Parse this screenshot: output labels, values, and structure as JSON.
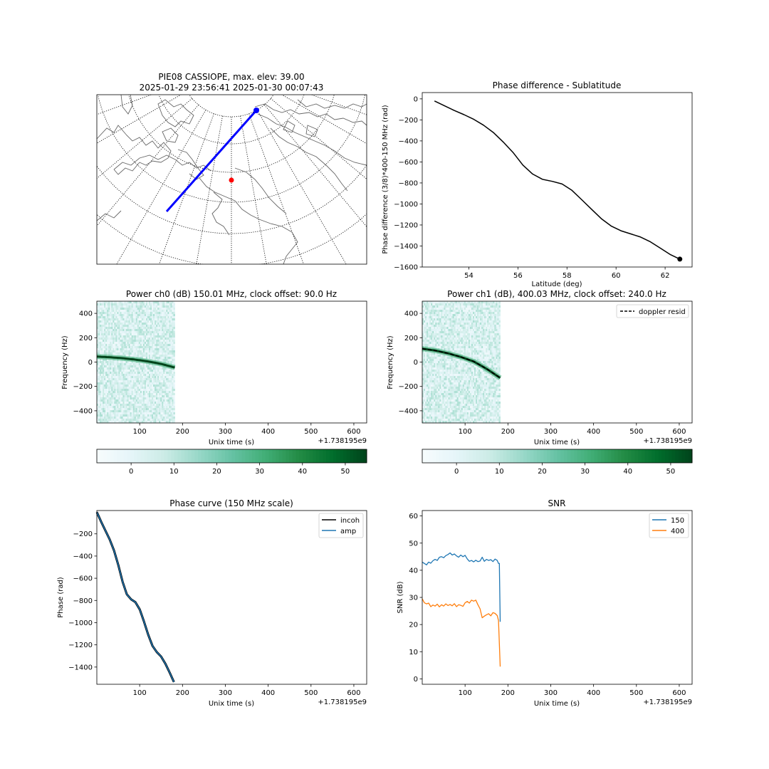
{
  "figure": {
    "background": "#ffffff"
  },
  "chart_data": [
    {
      "type": "map",
      "id": "map",
      "title_line1": "PIE08 CASSIOPE, max. elev: 39.00",
      "title_line2": "2025-01-29 23:56:41 2025-01-30 00:07:43",
      "projection": "north-polar-stereographic",
      "track_color": "#0000ff",
      "station_color": "#ff0000"
    },
    {
      "type": "line",
      "id": "phase_lat",
      "title": "Phase difference - Sublatitude",
      "xlabel": "Latitude (deg)",
      "ylabel": "Phase difference (3/8)*400-150 MHz (rad)",
      "xlim": [
        52.1,
        63.1
      ],
      "ylim": [
        -1600,
        60
      ],
      "xticks": [
        54,
        56,
        58,
        60,
        62
      ],
      "yticks": [
        0,
        -200,
        -400,
        -600,
        -800,
        -1000,
        -1200,
        -1400,
        -1600
      ],
      "series": [
        {
          "color": "#000000",
          "x": [
            52.6,
            53.0,
            53.4,
            53.8,
            54.2,
            54.6,
            55.0,
            55.4,
            55.8,
            56.2,
            56.6,
            57.0,
            57.4,
            57.8,
            58.2,
            58.6,
            59.0,
            59.4,
            59.8,
            60.2,
            60.6,
            61.0,
            61.4,
            61.8,
            62.2,
            62.6
          ],
          "values": [
            -20,
            -65,
            -110,
            -150,
            -195,
            -250,
            -320,
            -410,
            -510,
            -630,
            -715,
            -765,
            -785,
            -810,
            -870,
            -960,
            -1050,
            -1140,
            -1210,
            -1255,
            -1285,
            -1315,
            -1360,
            -1420,
            -1480,
            -1525
          ]
        }
      ],
      "end_marker": {
        "x": 62.6,
        "y": -1525
      }
    },
    {
      "type": "heatmap",
      "id": "power0",
      "title": "Power ch0 (dB) 150.01 MHz, clock offset: 90.0 Hz",
      "xlabel": "Unix time (s)",
      "ylabel": "Frequency (Hz)",
      "offset_text": "+1.738195e9",
      "xlim": [
        0,
        630
      ],
      "ylim": [
        -500,
        500
      ],
      "xticks": [
        100,
        200,
        300,
        400,
        500,
        600
      ],
      "yticks": [
        400,
        200,
        0,
        -200,
        -400
      ],
      "data_extent_x": [
        0,
        182
      ],
      "trace": {
        "x": [
          0,
          30,
          60,
          90,
          120,
          150,
          182
        ],
        "values": [
          45,
          40,
          32,
          20,
          5,
          -15,
          -45
        ]
      },
      "colorbar": {
        "ticks": [
          0,
          10,
          20,
          30,
          40,
          50
        ],
        "range": [
          -8,
          55
        ],
        "cmap": [
          "#f7fcfd",
          "#e5f5f9",
          "#ccece6",
          "#99d8c9",
          "#66c2a4",
          "#41ae76",
          "#238b45",
          "#006d2c",
          "#00441b"
        ]
      }
    },
    {
      "type": "heatmap",
      "id": "power1",
      "title": "Power ch1 (dB), 400.03 MHz, clock offset: 240.0 Hz",
      "xlabel": "Unix time (s)",
      "ylabel": "Frequency (Hz)",
      "offset_text": "+1.738195e9",
      "xlim": [
        0,
        630
      ],
      "ylim": [
        -500,
        500
      ],
      "xticks": [
        100,
        200,
        300,
        400,
        500,
        600
      ],
      "yticks": [
        400,
        200,
        0,
        -200,
        -400
      ],
      "data_extent_x": [
        0,
        182
      ],
      "trace": {
        "x": [
          0,
          30,
          60,
          90,
          120,
          150,
          182
        ],
        "values": [
          110,
          95,
          72,
          42,
          5,
          -55,
          -130
        ]
      },
      "legend": [
        {
          "name": "doppler resid",
          "style": "dashed",
          "color": "#000000"
        }
      ],
      "colorbar": {
        "ticks": [
          0,
          10,
          20,
          30,
          40,
          50
        ],
        "range": [
          -8,
          55
        ],
        "cmap": [
          "#f7fcfd",
          "#e5f5f9",
          "#ccece6",
          "#99d8c9",
          "#66c2a4",
          "#41ae76",
          "#238b45",
          "#006d2c",
          "#00441b"
        ]
      }
    },
    {
      "type": "line",
      "id": "phase_curve",
      "title": "Phase curve (150 MHz scale)",
      "xlabel": "Unix time (s)",
      "ylabel": "Phase (rad)",
      "offset_text": "+1.738195e9",
      "xlim": [
        0,
        630
      ],
      "ylim": [
        -1555,
        10
      ],
      "xticks": [
        100,
        200,
        300,
        400,
        500,
        600
      ],
      "yticks": [
        -200,
        -400,
        -600,
        -800,
        -1000,
        -1200,
        -1400
      ],
      "series": [
        {
          "name": "incoh",
          "color": "#000000",
          "width": 3,
          "x": [
            0,
            10,
            20,
            30,
            40,
            50,
            60,
            70,
            80,
            90,
            100,
            110,
            120,
            130,
            140,
            150,
            160,
            170,
            180
          ],
          "values": [
            -5,
            -90,
            -170,
            -250,
            -350,
            -480,
            -630,
            -745,
            -790,
            -815,
            -880,
            -990,
            -1110,
            -1210,
            -1265,
            -1305,
            -1370,
            -1450,
            -1535
          ]
        },
        {
          "name": "amp",
          "color": "#1f77b4",
          "width": 1.5,
          "x": [
            0,
            10,
            20,
            30,
            40,
            50,
            60,
            70,
            80,
            90,
            100,
            110,
            120,
            130,
            140,
            150,
            160,
            170,
            180
          ],
          "values": [
            -5,
            -90,
            -170,
            -250,
            -350,
            -480,
            -630,
            -745,
            -790,
            -815,
            -880,
            -990,
            -1110,
            -1210,
            -1265,
            -1305,
            -1370,
            -1450,
            -1535
          ]
        }
      ]
    },
    {
      "type": "line",
      "id": "snr",
      "title": "SNR",
      "xlabel": "Unix time (s)",
      "ylabel": "SNR (dB)",
      "offset_text": "+1.738195e9",
      "xlim": [
        0,
        630
      ],
      "ylim": [
        -2,
        62
      ],
      "xticks": [
        100,
        200,
        300,
        400,
        500,
        600
      ],
      "yticks": [
        0,
        10,
        20,
        30,
        40,
        50,
        60
      ],
      "series": [
        {
          "name": "150",
          "color": "#1f77b4",
          "width": 1.3,
          "x": [
            0,
            5,
            10,
            15,
            20,
            25,
            30,
            35,
            40,
            45,
            50,
            55,
            60,
            65,
            70,
            75,
            80,
            85,
            90,
            95,
            100,
            105,
            110,
            115,
            120,
            125,
            130,
            135,
            140,
            145,
            150,
            155,
            160,
            165,
            170,
            175,
            178,
            180,
            182
          ],
          "values": [
            43,
            42.5,
            42,
            43,
            42.6,
            43.5,
            44,
            43.6,
            44.8,
            45,
            44.6,
            45.4,
            45.8,
            46.4,
            45.6,
            46,
            45.3,
            44.8,
            45.6,
            45,
            45.5,
            44.2,
            43.3,
            43.6,
            43.1,
            43.7,
            43.2,
            43.4,
            44.8,
            43.3,
            44,
            43.6,
            43.9,
            43.2,
            44.1,
            43.6,
            42.5,
            42.5,
            21
          ]
        },
        {
          "name": "400",
          "color": "#ff7f0e",
          "width": 1.3,
          "x": [
            0,
            5,
            10,
            15,
            20,
            25,
            30,
            35,
            40,
            45,
            50,
            55,
            60,
            65,
            70,
            75,
            80,
            85,
            90,
            95,
            100,
            105,
            110,
            115,
            120,
            125,
            130,
            135,
            140,
            145,
            150,
            155,
            160,
            165,
            170,
            175,
            178,
            180,
            182
          ],
          "values": [
            29.5,
            28,
            27.6,
            27.9,
            26.6,
            27.2,
            26.8,
            27.5,
            26.5,
            27.3,
            26.8,
            27.6,
            27,
            27.4,
            26.9,
            27.7,
            26.6,
            27.3,
            27.1,
            26.7,
            28,
            28.5,
            27.9,
            29,
            28.6,
            29,
            27.3,
            25.8,
            22.5,
            23.1,
            23.6,
            24,
            23.2,
            24.4,
            24.1,
            23.3,
            21.5,
            13,
            4.5
          ]
        }
      ]
    }
  ]
}
